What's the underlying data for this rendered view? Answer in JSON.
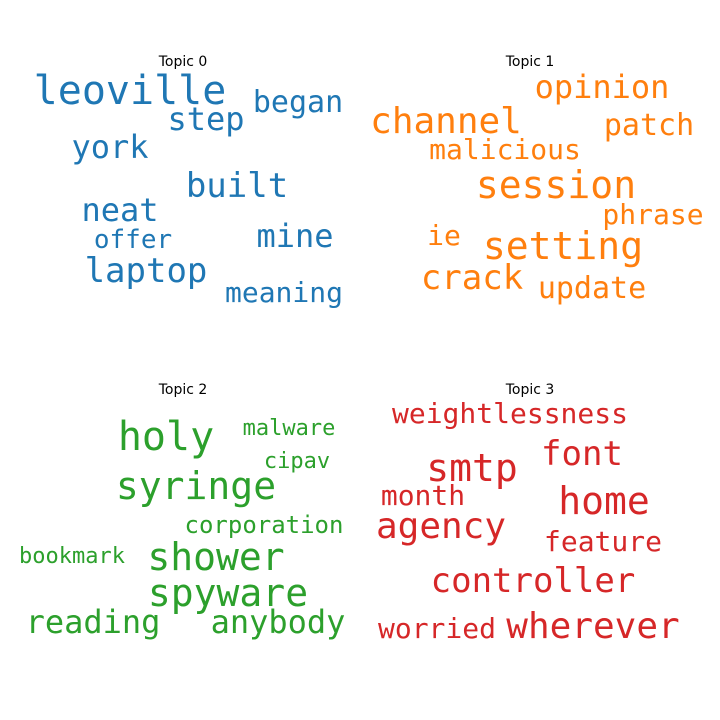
{
  "chart_data": [
    {
      "type": "wordcloud",
      "title": "Topic 0",
      "color": "#1f77b4",
      "words": [
        "leoville",
        "began",
        "step",
        "york",
        "built",
        "neat",
        "offer",
        "mine",
        "laptop",
        "meaning"
      ]
    },
    {
      "type": "wordcloud",
      "title": "Topic 1",
      "color": "#ff7f0e",
      "words": [
        "opinion",
        "channel",
        "patch",
        "malicious",
        "session",
        "phrase",
        "ie",
        "setting",
        "crack",
        "update"
      ]
    },
    {
      "type": "wordcloud",
      "title": "Topic 2",
      "color": "#2ca02c",
      "words": [
        "holy",
        "malware",
        "cipav",
        "syringe",
        "corporation",
        "bookmark",
        "shower",
        "spyware",
        "reading",
        "anybody"
      ]
    },
    {
      "type": "wordcloud",
      "title": "Topic 3",
      "color": "#d62728",
      "words": [
        "weightlessness",
        "smtp",
        "font",
        "month",
        "home",
        "agency",
        "feature",
        "controller",
        "worried",
        "wherever"
      ]
    }
  ]
}
